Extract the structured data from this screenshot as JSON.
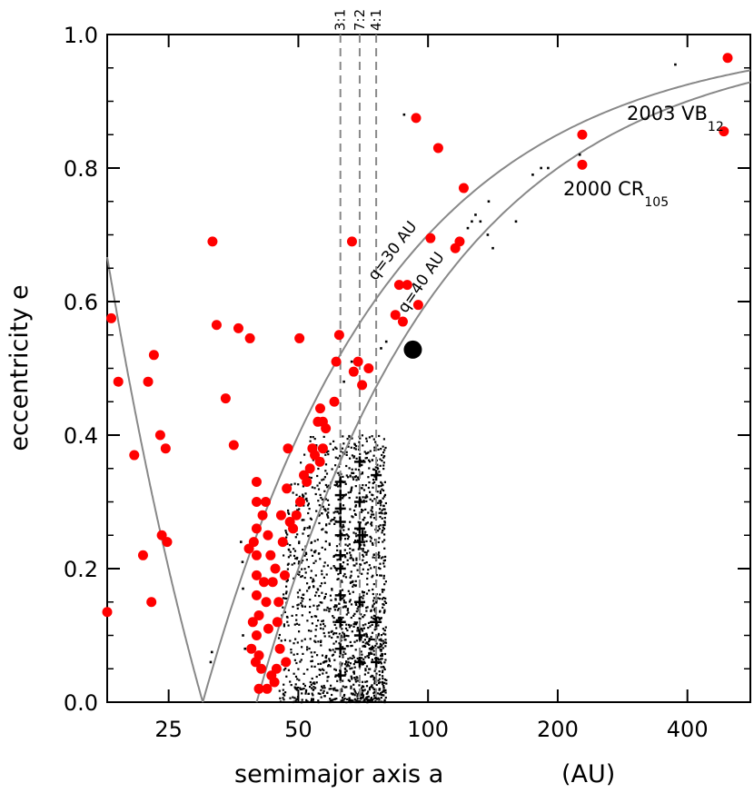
{
  "chart_data": {
    "type": "scatter",
    "xlabel": "semimajor axis a",
    "xunit": "(AU)",
    "ylabel": "eccentricity e",
    "xscale": "log",
    "xlim": [
      18,
      560
    ],
    "ylim": [
      0,
      1.0
    ],
    "x_ticks": [
      25,
      50,
      100,
      200,
      400
    ],
    "y_ticks": [
      0.0,
      0.2,
      0.4,
      0.6,
      0.8,
      1.0
    ],
    "y_tick_labels": [
      "0.0",
      "0.2",
      "0.4",
      "0.6",
      "0.8",
      "1.0"
    ],
    "grid": false,
    "resonances": [
      {
        "label": "3:1",
        "a": 62.6
      },
      {
        "label": "7:2",
        "a": 69.4
      },
      {
        "label": "4:1",
        "a": 75.8
      }
    ],
    "curves": [
      {
        "label": "q=30 AU",
        "q": 30,
        "color": "#888888"
      },
      {
        "label": "q=40 AU",
        "q": 40,
        "color": "#888888"
      }
    ],
    "annotations": [
      {
        "main": "2003 VB",
        "sub": "12"
      },
      {
        "main": "2000 CR",
        "sub": "105"
      }
    ],
    "colors": {
      "detached": "#ff0000",
      "background": "#000000",
      "curves": "#888888",
      "resonances": "#888888"
    },
    "series": [
      {
        "color": "#ff0000",
        "marker": "dot",
        "points": [
          [
            18,
            0.135
          ],
          [
            18.4,
            0.575
          ],
          [
            19.1,
            0.48
          ],
          [
            20.8,
            0.37
          ],
          [
            21.8,
            0.22
          ],
          [
            22.8,
            0.15
          ],
          [
            22.4,
            0.48
          ],
          [
            23.1,
            0.52
          ],
          [
            23.9,
            0.4
          ],
          [
            24.1,
            0.25
          ],
          [
            24.8,
            0.24
          ],
          [
            24.6,
            0.38
          ],
          [
            31.6,
            0.69
          ],
          [
            32.3,
            0.565
          ],
          [
            33.9,
            0.455
          ],
          [
            35.4,
            0.385
          ],
          [
            36.3,
            0.56
          ],
          [
            38.6,
            0.545
          ],
          [
            50.3,
            0.545
          ],
          [
            62.2,
            0.55
          ],
          [
            61.2,
            0.51
          ],
          [
            60.6,
            0.45
          ],
          [
            66.6,
            0.69
          ],
          [
            67.2,
            0.495
          ],
          [
            68.8,
            0.51
          ],
          [
            70.3,
            0.475
          ],
          [
            72.8,
            0.5
          ],
          [
            84,
            0.58
          ],
          [
            85.7,
            0.625
          ],
          [
            87.4,
            0.57
          ],
          [
            89.5,
            0.625
          ],
          [
            94.9,
            0.595
          ],
          [
            101.3,
            0.695
          ],
          [
            93.8,
            0.875
          ],
          [
            105.6,
            0.83
          ],
          [
            115.7,
            0.68
          ],
          [
            118.4,
            0.69
          ],
          [
            121,
            0.77
          ],
          [
            228,
            0.85
          ],
          [
            228,
            0.805
          ],
          [
            496,
            0.965
          ],
          [
            486,
            0.855
          ],
          [
            40,
            0.33
          ],
          [
            40,
            0.3
          ],
          [
            40,
            0.26
          ],
          [
            40,
            0.22
          ],
          [
            40,
            0.19
          ],
          [
            40,
            0.16
          ],
          [
            40.5,
            0.13
          ],
          [
            40,
            0.1
          ],
          [
            40.5,
            0.07
          ],
          [
            41,
            0.05
          ],
          [
            40.5,
            0.02
          ],
          [
            39.4,
            0.24
          ],
          [
            38.4,
            0.23
          ],
          [
            39.2,
            0.12
          ],
          [
            38.9,
            0.08
          ],
          [
            39.8,
            0.06
          ],
          [
            41.3,
            0.28
          ],
          [
            41.6,
            0.18
          ],
          [
            42,
            0.3
          ],
          [
            42.5,
            0.25
          ],
          [
            42.1,
            0.15
          ],
          [
            42.6,
            0.11
          ],
          [
            43.1,
            0.22
          ],
          [
            43.6,
            0.18
          ],
          [
            44,
            0.03
          ],
          [
            44.2,
            0.2
          ],
          [
            44.7,
            0.12
          ],
          [
            45,
            0.15
          ],
          [
            45.3,
            0.08
          ],
          [
            45.6,
            0.28
          ],
          [
            46,
            0.24
          ],
          [
            46.5,
            0.19
          ],
          [
            47,
            0.32
          ],
          [
            47.3,
            0.38
          ],
          [
            46.8,
            0.06
          ],
          [
            44.5,
            0.05
          ],
          [
            43.3,
            0.04
          ],
          [
            42.3,
            0.02
          ],
          [
            47.8,
            0.27
          ],
          [
            48.6,
            0.26
          ],
          [
            49.5,
            0.28
          ],
          [
            50.5,
            0.3
          ],
          [
            51.5,
            0.34
          ],
          [
            52.3,
            0.33
          ],
          [
            53.2,
            0.35
          ],
          [
            53.9,
            0.38
          ],
          [
            54.6,
            0.37
          ],
          [
            55.5,
            0.42
          ],
          [
            56.2,
            0.44
          ],
          [
            57,
            0.42
          ],
          [
            57.9,
            0.41
          ],
          [
            57,
            0.38
          ],
          [
            56.1,
            0.36
          ]
        ]
      },
      {
        "color": "#000000",
        "marker": "big-dot",
        "points": [
          [
            92.2,
            0.528
          ]
        ]
      },
      {
        "color": "#000000",
        "marker": "plus",
        "points": [
          [
            62.6,
            0.33
          ],
          [
            62.6,
            0.31
          ],
          [
            62.6,
            0.29
          ],
          [
            62.6,
            0.27
          ],
          [
            62.6,
            0.25
          ],
          [
            62.6,
            0.22
          ],
          [
            62.6,
            0.2
          ],
          [
            62.6,
            0.16
          ],
          [
            62.6,
            0.12
          ],
          [
            62.6,
            0.08
          ],
          [
            62.6,
            0.04
          ],
          [
            69.4,
            0.36
          ],
          [
            69.4,
            0.3
          ],
          [
            69.4,
            0.26
          ],
          [
            69.4,
            0.24
          ],
          [
            69.4,
            0.15
          ],
          [
            69.4,
            0.1
          ],
          [
            69.4,
            0.06
          ],
          [
            75.8,
            0.34
          ],
          [
            75.8,
            0.12
          ],
          [
            75.8,
            0.06
          ],
          [
            70.5,
            0.25
          ]
        ]
      },
      {
        "color": "#000000",
        "marker": "sparse-dot",
        "points": [
          [
            31.5,
            0.075
          ],
          [
            31.3,
            0.06
          ],
          [
            36.8,
            0.24
          ],
          [
            37.1,
            0.21
          ],
          [
            37.2,
            0.17
          ],
          [
            37.2,
            0.1
          ],
          [
            37.6,
            0.08
          ],
          [
            63.8,
            0.48
          ],
          [
            66.5,
            0.51
          ],
          [
            77.8,
            0.53
          ],
          [
            80,
            0.54
          ],
          [
            88,
            0.88
          ],
          [
            123.7,
            0.71
          ],
          [
            126.4,
            0.72
          ],
          [
            128.9,
            0.73
          ],
          [
            132.3,
            0.72
          ],
          [
            137.6,
            0.7
          ],
          [
            138.3,
            0.75
          ],
          [
            141.4,
            0.68
          ],
          [
            160,
            0.72
          ],
          [
            175,
            0.79
          ],
          [
            183,
            0.8
          ],
          [
            190,
            0.8
          ],
          [
            225,
            0.82
          ],
          [
            375,
            0.955
          ]
        ]
      }
    ],
    "background_cloud": {
      "description_none": "",
      "a_range": [
        45,
        80
      ],
      "e_max": 0.4
    }
  }
}
